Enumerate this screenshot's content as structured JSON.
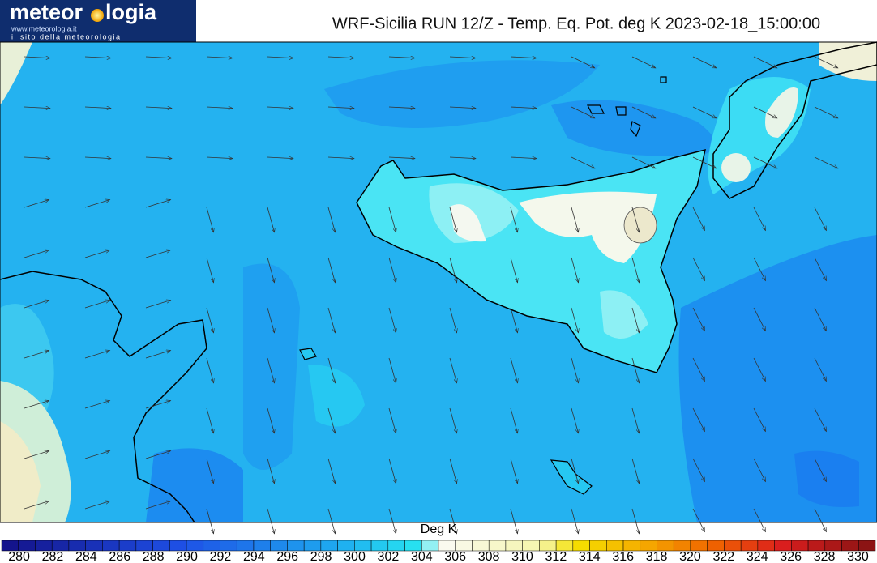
{
  "logo": {
    "name_start": "meteor",
    "name_end": "logia",
    "url": "www.meteorologia.it",
    "tagline": "il sito della meteorologia"
  },
  "title": "WRF-Sicilia RUN 12/Z - Temp. Eq. Pot. deg K 2023-02-18_15:00:00",
  "colorbar": {
    "label": "Deg K",
    "ticks": [
      280,
      282,
      284,
      286,
      288,
      290,
      292,
      294,
      296,
      298,
      300,
      302,
      304,
      306,
      308,
      310,
      312,
      314,
      316,
      318,
      320,
      322,
      324,
      326,
      328,
      330
    ]
  }
}
